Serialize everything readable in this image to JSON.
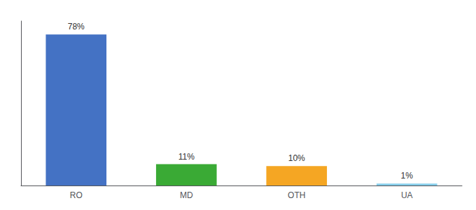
{
  "chart_data": {
    "type": "bar",
    "categories": [
      "RO",
      "MD",
      "OTH",
      "UA"
    ],
    "values": [
      78,
      11,
      10,
      1
    ],
    "value_labels": [
      "78%",
      "11%",
      "10%",
      "1%"
    ],
    "colors": [
      "#4472c4",
      "#3aaa35",
      "#f5a623",
      "#87ceeb"
    ],
    "ylim": [
      0,
      85
    ],
    "grid": false,
    "data_labels": true,
    "tick_labels": "x"
  }
}
